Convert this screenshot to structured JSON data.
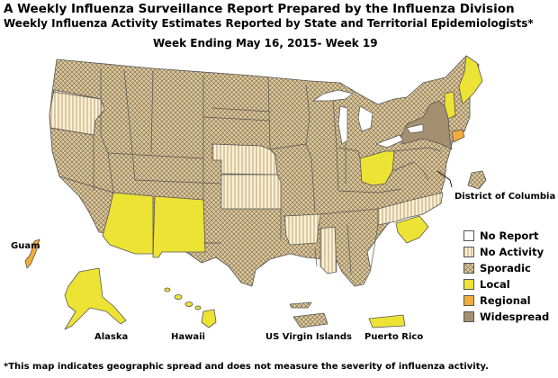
{
  "header": {
    "title": "A Weekly Influenza Surveillance Report Prepared by the Influenza Division",
    "subtitle": "Weekly Influenza Activity Estimates Reported by State and Territorial Epidemiologists*",
    "week": "Week Ending May 16, 2015- Week 19"
  },
  "labels": {
    "dc": "District of Columbia",
    "guam": "Guam",
    "alaska": "Alaska",
    "hawaii": "Hawaii",
    "usvi": "US Virgin Islands",
    "pr": "Puerto Rico"
  },
  "legend": [
    {
      "key": "no_report",
      "label": "No Report",
      "color": "#ffffff"
    },
    {
      "key": "no_activity",
      "label": "No Activity",
      "color": "#f8f0d8"
    },
    {
      "key": "sporadic",
      "label": "Sporadic",
      "color": "#dcc9a0"
    },
    {
      "key": "local",
      "label": "Local",
      "color": "#ece335"
    },
    {
      "key": "regional",
      "label": "Regional",
      "color": "#f0ac3c"
    },
    {
      "key": "widespread",
      "label": "Widespread",
      "color": "#a49070"
    }
  ],
  "activity_levels": {
    "New York": "widespread",
    "Connecticut": "regional",
    "Guam": "regional",
    "Ohio": "local",
    "South Carolina": "local",
    "Arizona": "local",
    "New Mexico": "local",
    "Vermont": "local",
    "Maine": "local",
    "Alaska": "local",
    "Hawaii": "local",
    "Puerto Rico": "local",
    "Oregon": "no_activity",
    "Nebraska": "no_activity",
    "Kansas": "no_activity",
    "Arkansas": "no_activity",
    "Mississippi": "no_activity",
    "North Carolina": "no_activity",
    "US Virgin Islands": "sporadic",
    "District of Columbia": "sporadic",
    "all_other_states": "sporadic"
  },
  "footnote": "*This map indicates geographic spread and does not measure the severity of influenza activity."
}
